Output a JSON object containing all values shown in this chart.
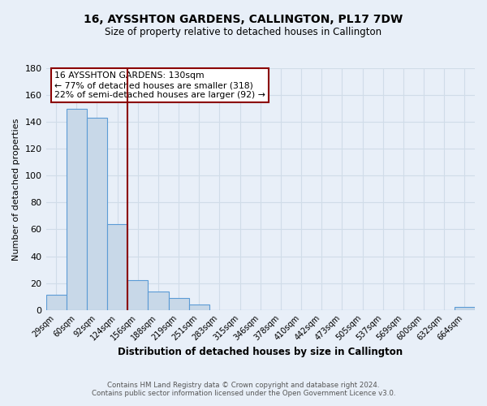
{
  "title": "16, AYSSHTON GARDENS, CALLINGTON, PL17 7DW",
  "subtitle": "Size of property relative to detached houses in Callington",
  "xlabel": "Distribution of detached houses by size in Callington",
  "ylabel": "Number of detached properties",
  "bin_labels": [
    "29sqm",
    "60sqm",
    "92sqm",
    "124sqm",
    "156sqm",
    "188sqm",
    "219sqm",
    "251sqm",
    "283sqm",
    "315sqm",
    "346sqm",
    "378sqm",
    "410sqm",
    "442sqm",
    "473sqm",
    "505sqm",
    "537sqm",
    "569sqm",
    "600sqm",
    "632sqm",
    "664sqm"
  ],
  "bar_values": [
    11,
    150,
    143,
    64,
    22,
    14,
    9,
    4,
    0,
    0,
    0,
    0,
    0,
    0,
    0,
    0,
    0,
    0,
    0,
    0,
    2
  ],
  "bar_color": "#c8d8e8",
  "bar_edge_color": "#5b9bd5",
  "vline_x": 3.5,
  "vline_color": "#8b0000",
  "ylim": [
    0,
    180
  ],
  "yticks": [
    0,
    20,
    40,
    60,
    80,
    100,
    120,
    140,
    160,
    180
  ],
  "annotation_title": "16 AYSSHTON GARDENS: 130sqm",
  "annotation_line1": "← 77% of detached houses are smaller (318)",
  "annotation_line2": "22% of semi-detached houses are larger (92) →",
  "annotation_box_color": "#ffffff",
  "annotation_border_color": "#8b0000",
  "footer_line1": "Contains HM Land Registry data © Crown copyright and database right 2024.",
  "footer_line2": "Contains public sector information licensed under the Open Government Licence v3.0.",
  "grid_color": "#d0dce8",
  "background_color": "#e8eff8"
}
